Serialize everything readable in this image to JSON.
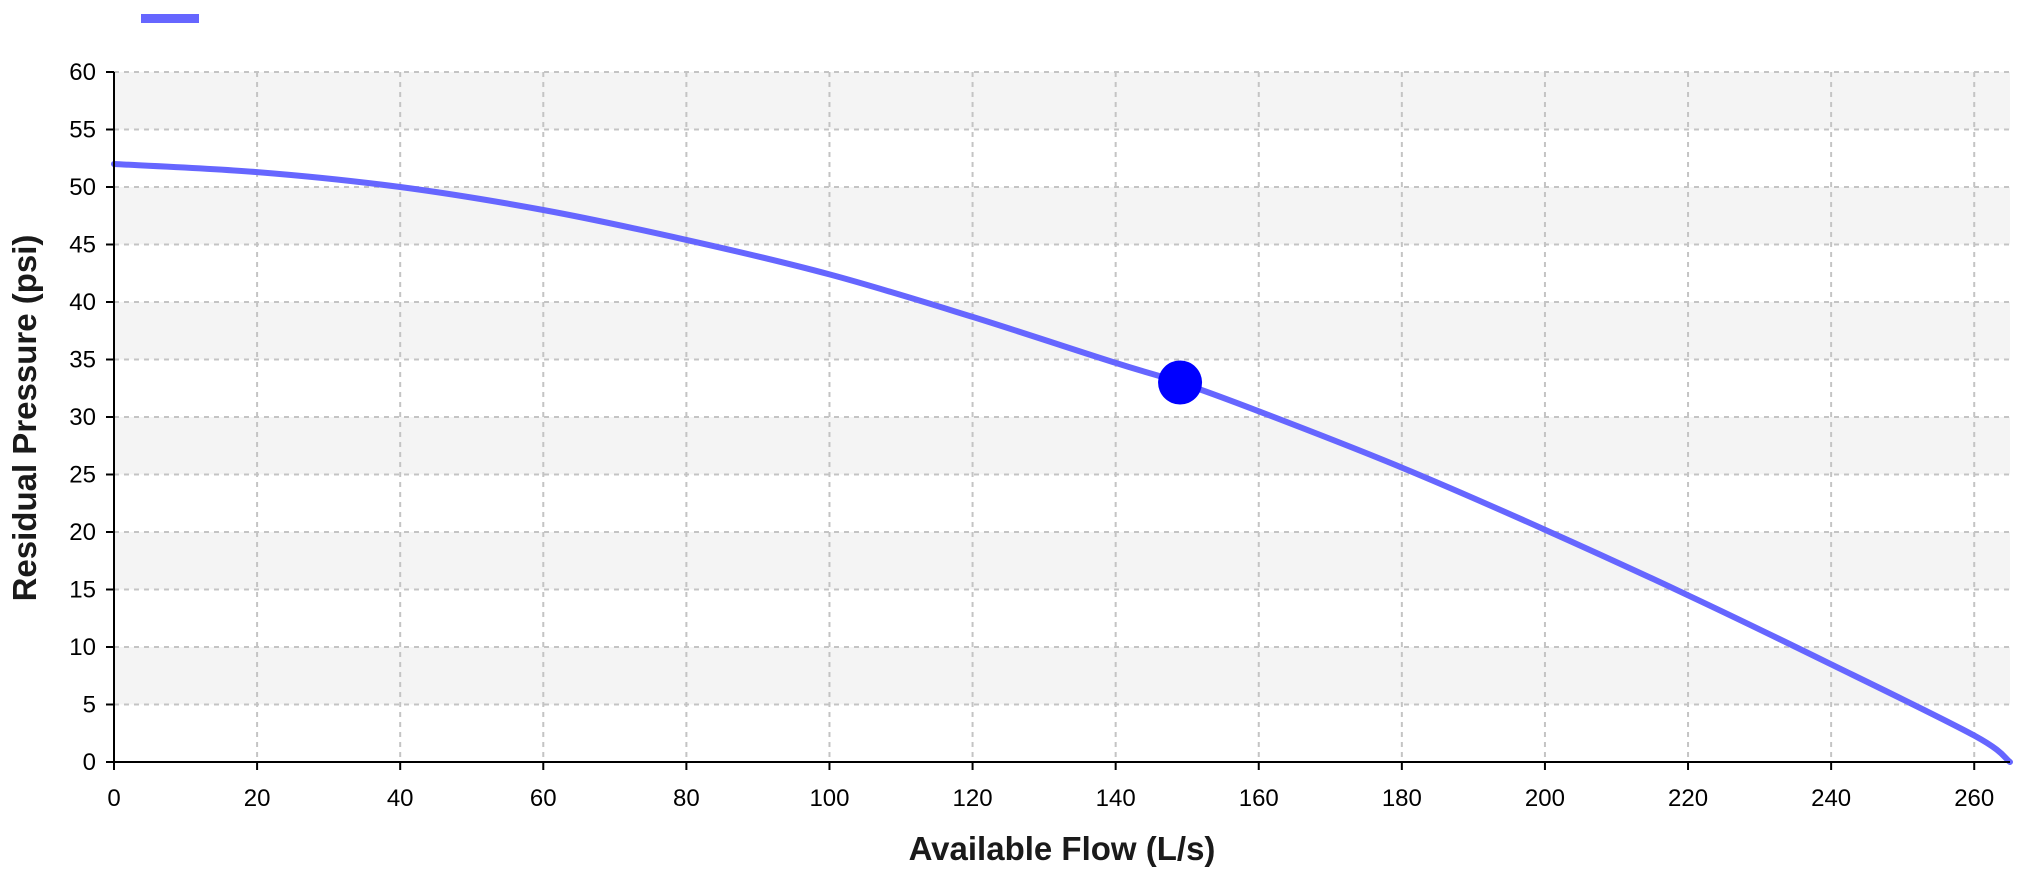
{
  "chart_data": {
    "type": "line",
    "title": "",
    "xlabel": "Available Flow (L/s)",
    "ylabel": "Residual Pressure (psi)",
    "xlim": [
      0,
      265
    ],
    "ylim": [
      0,
      60
    ],
    "x_ticks": [
      0,
      20,
      40,
      60,
      80,
      100,
      120,
      140,
      160,
      180,
      200,
      220,
      240,
      260
    ],
    "y_ticks": [
      0,
      5,
      10,
      15,
      20,
      25,
      30,
      35,
      40,
      45,
      50,
      55,
      60
    ],
    "grid": true,
    "legend": "top-left",
    "colors": {
      "series": "#6666ff",
      "marker": "#0000ff",
      "grid": "#c4c4c4",
      "band": "#f4f4f4",
      "axis": "#000000"
    },
    "series": [
      {
        "x": [
          0,
          20,
          40,
          60,
          80,
          100,
          120,
          140,
          149,
          160,
          180,
          200,
          220,
          240,
          260,
          265
        ],
        "y": [
          52.0,
          51.3,
          50.0,
          48.0,
          45.4,
          42.4,
          38.7,
          34.7,
          33.0,
          30.5,
          25.6,
          20.2,
          14.5,
          8.5,
          2.3,
          0.0
        ]
      }
    ],
    "points": [
      {
        "x": 149,
        "y": 33.0
      }
    ]
  }
}
